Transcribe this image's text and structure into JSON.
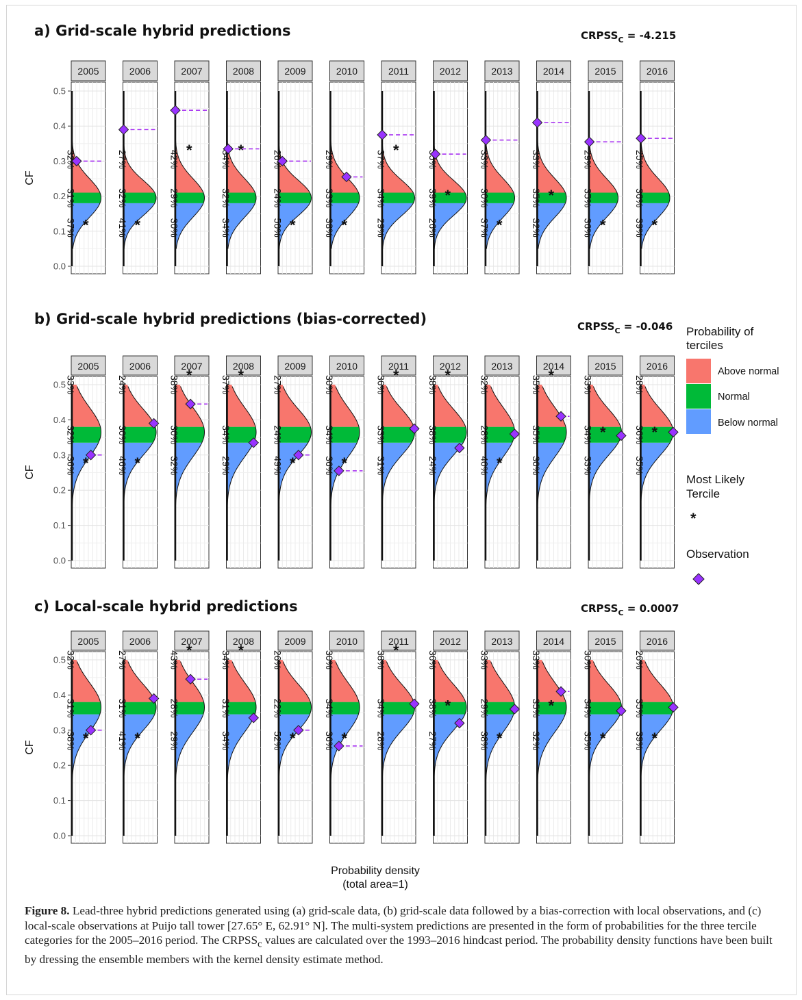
{
  "chart_data": [
    {
      "type": "density",
      "title": "a) Grid-scale hybrid predictions",
      "crpss_label": "CRPSS",
      "crpss_sub": "C",
      "crpss_value": "= -4.215",
      "ylabel": "CF",
      "ylim": [
        0,
        0.5
      ],
      "yticks": [
        "0.0",
        "0.1",
        "0.2",
        "0.3",
        "0.4",
        "0.5"
      ],
      "terciles": [
        0.18,
        0.21
      ],
      "mode": 0.195,
      "panels": [
        {
          "year": "2005",
          "above": "32%",
          "normal": "31%",
          "below": "37%",
          "likely": "below",
          "obs": 0.3,
          "w": 0.85,
          "sd": 0.055
        },
        {
          "year": "2006",
          "above": "27%",
          "normal": "32%",
          "below": "41%",
          "likely": "below",
          "obs": 0.39,
          "w": 0.95,
          "sd": 0.05
        },
        {
          "year": "2007",
          "above": "42%",
          "normal": "29%",
          "below": "30%",
          "likely": "above",
          "obs": 0.445,
          "w": 0.85,
          "sd": 0.055
        },
        {
          "year": "2008",
          "above": "34%",
          "normal": "32%",
          "below": "34%",
          "likely": "above",
          "obs": 0.335,
          "w": 0.85,
          "sd": 0.055
        },
        {
          "year": "2009",
          "above": "26%",
          "normal": "24%",
          "below": "50%",
          "likely": "below",
          "obs": 0.3,
          "w": 0.95,
          "sd": 0.05
        },
        {
          "year": "2010",
          "above": "29%",
          "normal": "33%",
          "below": "38%",
          "likely": "below",
          "obs": 0.255,
          "w": 0.85,
          "sd": 0.055
        },
        {
          "year": "2011",
          "above": "37%",
          "normal": "34%",
          "below": "29%",
          "likely": "above",
          "obs": 0.375,
          "w": 0.95,
          "sd": 0.05
        },
        {
          "year": "2012",
          "above": "35%",
          "normal": "39%",
          "below": "26%",
          "likely": "normal",
          "obs": 0.32,
          "w": 0.95,
          "sd": 0.05
        },
        {
          "year": "2013",
          "above": "33%",
          "normal": "30%",
          "below": "37%",
          "likely": "below",
          "obs": 0.36,
          "w": 0.85,
          "sd": 0.055
        },
        {
          "year": "2014",
          "above": "33%",
          "normal": "35%",
          "below": "32%",
          "likely": "normal",
          "obs": 0.41,
          "w": 0.85,
          "sd": 0.055
        },
        {
          "year": "2015",
          "above": "29%",
          "normal": "35%",
          "below": "36%",
          "likely": "below",
          "obs": 0.355,
          "w": 0.85,
          "sd": 0.055
        },
        {
          "year": "2016",
          "above": "25%",
          "normal": "36%",
          "below": "39%",
          "likely": "below",
          "obs": 0.365,
          "w": 0.85,
          "sd": 0.055
        }
      ]
    },
    {
      "type": "density",
      "title": "b) Grid-scale hybrid predictions (bias-corrected)",
      "crpss_label": "CRPSS",
      "crpss_sub": "C",
      "crpss_value": "= -0.046",
      "ylabel": "CF",
      "ylim": [
        0,
        0.5
      ],
      "yticks": [
        "0.0",
        "0.1",
        "0.2",
        "0.3",
        "0.4",
        "0.5"
      ],
      "terciles": [
        0.335,
        0.38
      ],
      "mode": 0.365,
      "panels": [
        {
          "year": "2005",
          "above": "33%",
          "normal": "32%",
          "below": "36%",
          "likely": "below",
          "obs": 0.3,
          "w": 0.85,
          "sd": 0.07
        },
        {
          "year": "2006",
          "above": "24%",
          "normal": "30%",
          "below": "46%",
          "likely": "below",
          "obs": 0.39,
          "w": 0.95,
          "sd": 0.065
        },
        {
          "year": "2007",
          "above": "38%",
          "normal": "30%",
          "below": "32%",
          "likely": "above",
          "obs": 0.445,
          "w": 0.85,
          "sd": 0.07
        },
        {
          "year": "2008",
          "above": "37%",
          "normal": "34%",
          "below": "29%",
          "likely": "above",
          "obs": 0.335,
          "w": 0.85,
          "sd": 0.07
        },
        {
          "year": "2009",
          "above": "27%",
          "normal": "24%",
          "below": "49%",
          "likely": "below",
          "obs": 0.3,
          "w": 0.95,
          "sd": 0.065
        },
        {
          "year": "2010",
          "above": "30%",
          "normal": "34%",
          "below": "36%",
          "likely": "below",
          "obs": 0.255,
          "w": 0.85,
          "sd": 0.07
        },
        {
          "year": "2011",
          "above": "36%",
          "normal": "33%",
          "below": "31%",
          "likely": "above",
          "obs": 0.375,
          "w": 0.95,
          "sd": 0.065
        },
        {
          "year": "2012",
          "above": "38%",
          "normal": "38%",
          "below": "24%",
          "likely": "above",
          "obs": 0.32,
          "w": 0.95,
          "sd": 0.065
        },
        {
          "year": "2013",
          "above": "32%",
          "normal": "28%",
          "below": "40%",
          "likely": "below",
          "obs": 0.36,
          "w": 0.85,
          "sd": 0.07
        },
        {
          "year": "2014",
          "above": "35%",
          "normal": "35%",
          "below": "30%",
          "likely": "above",
          "obs": 0.41,
          "w": 0.85,
          "sd": 0.07
        },
        {
          "year": "2015",
          "above": "33%",
          "normal": "34%",
          "below": "33%",
          "likely": "normal",
          "obs": 0.355,
          "w": 0.95,
          "sd": 0.065
        },
        {
          "year": "2016",
          "above": "28%",
          "normal": "36%",
          "below": "35%",
          "likely": "normal",
          "obs": 0.365,
          "w": 0.95,
          "sd": 0.065
        }
      ]
    },
    {
      "type": "density",
      "title": "c) Local-scale hybrid predictions",
      "crpss_label": "CRPSS",
      "crpss_sub": "C",
      "crpss_value": "= 0.0007",
      "ylabel": "CF",
      "ylim": [
        0,
        0.5
      ],
      "yticks": [
        "0.0",
        "0.1",
        "0.2",
        "0.3",
        "0.4",
        "0.5"
      ],
      "terciles": [
        0.345,
        0.38
      ],
      "mode": 0.365,
      "panels": [
        {
          "year": "2005",
          "above": "32%",
          "normal": "31%",
          "below": "38%",
          "likely": "below",
          "obs": 0.3,
          "w": 0.85,
          "sd": 0.07
        },
        {
          "year": "2006",
          "above": "27%",
          "normal": "31%",
          "below": "41%",
          "likely": "below",
          "obs": 0.39,
          "w": 0.95,
          "sd": 0.065
        },
        {
          "year": "2007",
          "above": "43%",
          "normal": "28%",
          "below": "29%",
          "likely": "above",
          "obs": 0.445,
          "w": 0.85,
          "sd": 0.07
        },
        {
          "year": "2008",
          "above": "34%",
          "normal": "31%",
          "below": "34%",
          "likely": "above",
          "obs": 0.335,
          "w": 0.85,
          "sd": 0.07
        },
        {
          "year": "2009",
          "above": "26%",
          "normal": "22%",
          "below": "52%",
          "likely": "below",
          "obs": 0.3,
          "w": 0.95,
          "sd": 0.065
        },
        {
          "year": "2010",
          "above": "30%",
          "normal": "34%",
          "below": "36%",
          "likely": "below",
          "obs": 0.255,
          "w": 0.85,
          "sd": 0.07
        },
        {
          "year": "2011",
          "above": "38%",
          "normal": "34%",
          "below": "28%",
          "likely": "above",
          "obs": 0.375,
          "w": 0.95,
          "sd": 0.065
        },
        {
          "year": "2012",
          "above": "36%",
          "normal": "38%",
          "below": "27%",
          "likely": "normal",
          "obs": 0.32,
          "w": 0.95,
          "sd": 0.065
        },
        {
          "year": "2013",
          "above": "33%",
          "normal": "29%",
          "below": "38%",
          "likely": "below",
          "obs": 0.36,
          "w": 0.85,
          "sd": 0.07
        },
        {
          "year": "2014",
          "above": "33%",
          "normal": "35%",
          "below": "32%",
          "likely": "normal",
          "obs": 0.41,
          "w": 0.85,
          "sd": 0.07
        },
        {
          "year": "2015",
          "above": "30%",
          "normal": "34%",
          "below": "35%",
          "likely": "below",
          "obs": 0.355,
          "w": 0.95,
          "sd": 0.065
        },
        {
          "year": "2016",
          "above": "26%",
          "normal": "35%",
          "below": "39%",
          "likely": "below",
          "obs": 0.365,
          "w": 0.95,
          "sd": 0.065
        }
      ]
    }
  ],
  "xlabel_line1": "Probability density",
  "xlabel_line2": "(total area=1)",
  "legend": {
    "title_line1": "Probability of",
    "title_line2": "terciles",
    "items": [
      {
        "label": "Above normal",
        "color": "#f8766d"
      },
      {
        "label": "Normal",
        "color": "#00ba38"
      },
      {
        "label": "Below normal",
        "color": "#619cff"
      }
    ],
    "likely_line1": "Most Likely",
    "likely_line2": "Tercile",
    "likely_symbol": "*",
    "obs_label": "Observation"
  },
  "colors": {
    "above": "#f8766d",
    "normal": "#00ba38",
    "below": "#619cff",
    "obs": "#9933ff",
    "obsline": "#a020f0",
    "strip": "#d9d9d9"
  },
  "caption": {
    "label": "Figure 8.",
    "text": " Lead-three hybrid predictions generated using (a) grid-scale data, (b) grid-scale data followed by a bias-correction with local observations, and (c) local-scale observations at Puijo tall tower [27.65° E, 62.91° N]. The multi-system predictions are presented in the form of probabilities for the three tercile categories for the 2005–2016 period. The CRPSS",
    "sub": "c",
    "text2": " values are calculated over the 1993–2016 hindcast period. The probability density functions have been built by dressing the ensemble members with the kernel density estimate method."
  }
}
